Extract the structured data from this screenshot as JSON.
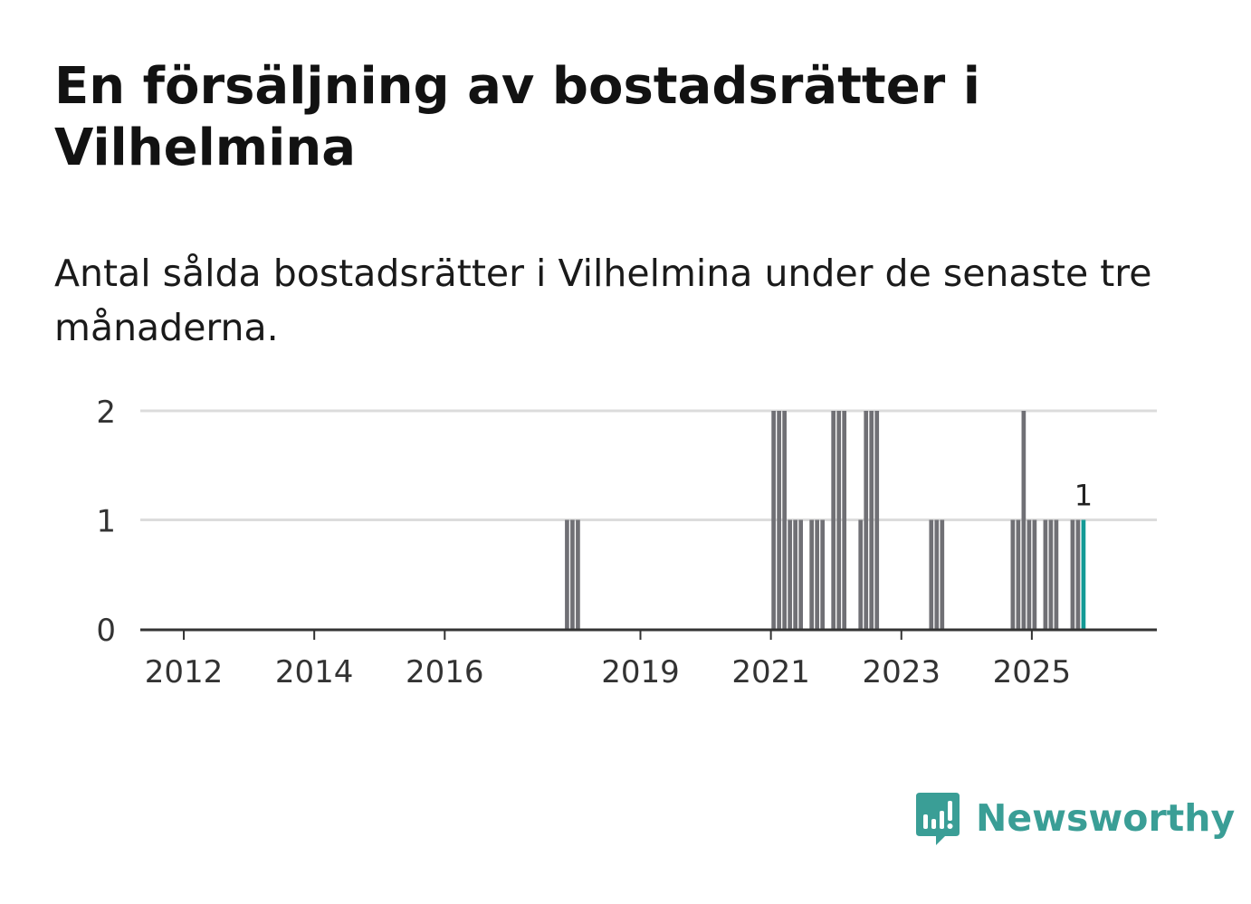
{
  "header": {
    "title": "En försäljning av bostadsrätter i Vilhelmina",
    "subtitle": "Antal sålda bostadsrätter i Vilhelmina under de senaste tre månaderna."
  },
  "brand": {
    "name": "Newsworthy",
    "icon": "newsworthy-chart-bubble-icon",
    "color": "#3a9e96"
  },
  "colors": {
    "bar": "#707075",
    "highlight": "#139a96",
    "grid": "#dcdcdc",
    "axis": "#333333"
  },
  "chart_data": {
    "type": "bar",
    "title": "En försäljning av bostadsrätter i Vilhelmina",
    "subtitle": "Antal sålda bostadsrätter i Vilhelmina under de senaste tre månaderna.",
    "xlabel": "",
    "ylabel": "",
    "x_range": [
      "2011-05",
      "2026-12"
    ],
    "ylim": [
      0,
      2
    ],
    "y_ticks": [
      0,
      1,
      2
    ],
    "x_ticks": [
      {
        "label": "2012",
        "date": "2012-01"
      },
      {
        "label": "2014",
        "date": "2014-01"
      },
      {
        "label": "2016",
        "date": "2016-01"
      },
      {
        "label": "2019",
        "date": "2019-01"
      },
      {
        "label": "2021",
        "date": "2021-01"
      },
      {
        "label": "2023",
        "date": "2023-01"
      },
      {
        "label": "2025",
        "date": "2025-01"
      }
    ],
    "grid": true,
    "legend": "none",
    "series": [
      {
        "points": [
          {
            "x": "2017-11",
            "y": 1
          },
          {
            "x": "2017-12",
            "y": 1
          },
          {
            "x": "2018-01",
            "y": 1
          },
          {
            "x": "2021-01",
            "y": 2
          },
          {
            "x": "2021-02",
            "y": 2
          },
          {
            "x": "2021-03",
            "y": 2
          },
          {
            "x": "2021-04",
            "y": 1
          },
          {
            "x": "2021-05",
            "y": 1
          },
          {
            "x": "2021-06",
            "y": 1
          },
          {
            "x": "2021-08",
            "y": 1
          },
          {
            "x": "2021-09",
            "y": 1
          },
          {
            "x": "2021-10",
            "y": 1
          },
          {
            "x": "2021-12",
            "y": 2
          },
          {
            "x": "2022-01",
            "y": 2
          },
          {
            "x": "2022-02",
            "y": 2
          },
          {
            "x": "2022-05",
            "y": 1
          },
          {
            "x": "2022-06",
            "y": 2
          },
          {
            "x": "2022-07",
            "y": 2
          },
          {
            "x": "2022-08",
            "y": 2
          },
          {
            "x": "2023-06",
            "y": 1
          },
          {
            "x": "2023-07",
            "y": 1
          },
          {
            "x": "2023-08",
            "y": 1
          },
          {
            "x": "2024-09",
            "y": 1
          },
          {
            "x": "2024-10",
            "y": 1
          },
          {
            "x": "2024-11",
            "y": 2
          },
          {
            "x": "2024-12",
            "y": 1
          },
          {
            "x": "2025-01",
            "y": 1
          },
          {
            "x": "2025-03",
            "y": 1
          },
          {
            "x": "2025-04",
            "y": 1
          },
          {
            "x": "2025-05",
            "y": 1
          },
          {
            "x": "2025-08",
            "y": 1
          },
          {
            "x": "2025-09",
            "y": 1
          },
          {
            "x": "2025-10",
            "y": 1,
            "highlight": true,
            "label": "1"
          }
        ]
      }
    ]
  }
}
